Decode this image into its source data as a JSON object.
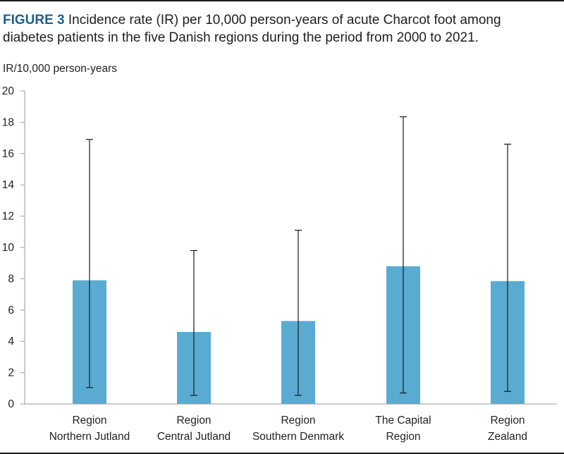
{
  "caption": {
    "label": "FIGURE 3",
    "text": " Incidence rate (IR) per 10,000 person-years of acute Charcot foot among diabetes patients in the five Danish regions during the period from 2000 to 2021."
  },
  "chart_data": {
    "type": "bar",
    "title": "Incidence rate (IR) per 10,000 person-years of acute Charcot foot among diabetes patients in the five Danish regions during the period from 2000 to 2021.",
    "ylabel": "IR/10,000 person-years",
    "xlabel": "",
    "ylim": [
      0,
      20
    ],
    "yticks": [
      0,
      2,
      4,
      6,
      8,
      10,
      12,
      14,
      16,
      18,
      20
    ],
    "ytick_labels": [
      "0",
      "2",
      "4",
      "6",
      "8",
      "10",
      "12",
      "14",
      "16",
      "18",
      "20"
    ],
    "categories": [
      [
        "Region",
        "Northern Jutland"
      ],
      [
        "Region",
        "Central Jutland"
      ],
      [
        "Region",
        "Southern Denmark"
      ],
      [
        "The Capital",
        "Region"
      ],
      [
        "Region",
        "Zealand"
      ]
    ],
    "values": [
      7.9,
      4.6,
      5.3,
      8.8,
      7.85
    ],
    "ci_lower": [
      1.05,
      0.55,
      0.55,
      0.7,
      0.8
    ],
    "ci_upper": [
      16.9,
      9.8,
      11.1,
      18.35,
      16.6
    ],
    "bar_color": "#5aabd1",
    "grid": false
  }
}
